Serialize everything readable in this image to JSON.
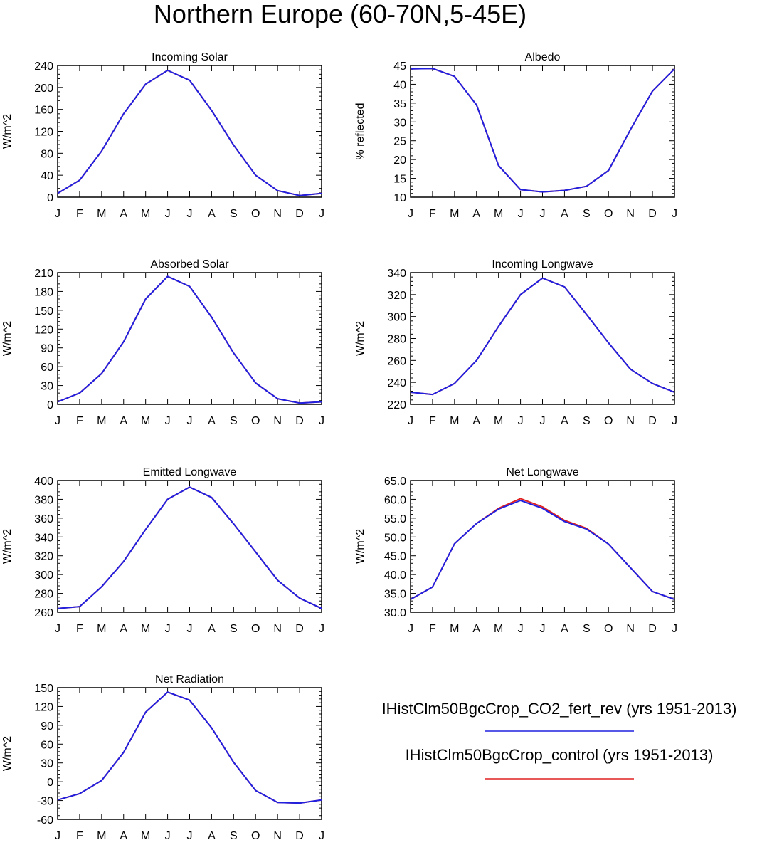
{
  "figure": {
    "title": "Northern Europe (60-70N,5-45E)"
  },
  "legend": {
    "entries": [
      {
        "label": "IHistClm50BgcCrop_CO2_fert_rev (yrs 1951-2013)",
        "color": "#2020e0"
      },
      {
        "label": "IHistClm50BgcCrop_control (yrs 1951-2013)",
        "color": "#e02020"
      }
    ]
  },
  "chart_data": [
    {
      "type": "line",
      "title": "Incoming Solar",
      "ylabel": "W/m^2",
      "xlabel": "",
      "categories": [
        "J",
        "F",
        "M",
        "A",
        "M",
        "J",
        "J",
        "A",
        "S",
        "O",
        "N",
        "D",
        "J"
      ],
      "ylim": [
        0,
        240
      ],
      "yticks": [
        0,
        40,
        80,
        120,
        160,
        200,
        240
      ],
      "ytick_labels": [
        "0",
        "40",
        "80",
        "120",
        "160",
        "200",
        "240"
      ],
      "series": [
        {
          "values": [
            7,
            31,
            84,
            152,
            206,
            231,
            213,
            158,
            95,
            40,
            12,
            3,
            7
          ],
          "color": "#e02020"
        },
        {
          "values": [
            7,
            31,
            84,
            152,
            206,
            231,
            213,
            158,
            95,
            40,
            12,
            3,
            7
          ],
          "color": "#2020e0"
        }
      ]
    },
    {
      "type": "line",
      "title": "Albedo",
      "ylabel": "% reflected",
      "xlabel": "",
      "categories": [
        "J",
        "F",
        "M",
        "A",
        "M",
        "J",
        "J",
        "A",
        "S",
        "O",
        "N",
        "D",
        "J"
      ],
      "ylim": [
        10,
        45
      ],
      "yticks": [
        10,
        15,
        20,
        25,
        30,
        35,
        40,
        45
      ],
      "ytick_labels": [
        "10",
        "15",
        "20",
        "25",
        "30",
        "35",
        "40",
        "45"
      ],
      "series": [
        {
          "values": [
            44.1,
            44.2,
            42.1,
            34.5,
            18.4,
            12.0,
            11.4,
            11.8,
            12.9,
            17.1,
            28.0,
            38.2,
            44.1
          ],
          "color": "#e02020"
        },
        {
          "values": [
            44.1,
            44.2,
            42.1,
            34.5,
            18.4,
            12.0,
            11.4,
            11.8,
            12.9,
            17.1,
            28.0,
            38.2,
            44.1
          ],
          "color": "#2020e0"
        }
      ]
    },
    {
      "type": "line",
      "title": "Absorbed Solar",
      "ylabel": "W/m^2",
      "xlabel": "",
      "categories": [
        "J",
        "F",
        "M",
        "A",
        "M",
        "J",
        "J",
        "A",
        "S",
        "O",
        "N",
        "D",
        "J"
      ],
      "ylim": [
        0,
        210
      ],
      "yticks": [
        0,
        30,
        60,
        90,
        120,
        150,
        180,
        210
      ],
      "ytick_labels": [
        "0",
        "30",
        "60",
        "90",
        "120",
        "150",
        "180",
        "210"
      ],
      "series": [
        {
          "values": [
            4,
            18,
            49,
            100,
            168,
            204,
            188,
            139,
            82,
            34,
            9,
            2,
            4
          ],
          "color": "#e02020"
        },
        {
          "values": [
            4,
            18,
            49,
            100,
            168,
            204,
            188,
            139,
            82,
            34,
            9,
            2,
            4
          ],
          "color": "#2020e0"
        }
      ]
    },
    {
      "type": "line",
      "title": "Incoming Longwave",
      "ylabel": "W/m^2",
      "xlabel": "",
      "categories": [
        "J",
        "F",
        "M",
        "A",
        "M",
        "J",
        "J",
        "A",
        "S",
        "O",
        "N",
        "D",
        "J"
      ],
      "ylim": [
        220,
        340
      ],
      "yticks": [
        220,
        240,
        260,
        280,
        300,
        320,
        340
      ],
      "ytick_labels": [
        "220",
        "240",
        "260",
        "280",
        "300",
        "320",
        "340"
      ],
      "series": [
        {
          "values": [
            231,
            229,
            239,
            260,
            291,
            320,
            335,
            327,
            302,
            276,
            252,
            239,
            231
          ],
          "color": "#e02020"
        },
        {
          "values": [
            231,
            229,
            239,
            260,
            291,
            320,
            335,
            327,
            302,
            276,
            252,
            239,
            231
          ],
          "color": "#2020e0"
        }
      ]
    },
    {
      "type": "line",
      "title": "Emitted Longwave",
      "ylabel": "W/m^2",
      "xlabel": "",
      "categories": [
        "J",
        "F",
        "M",
        "A",
        "M",
        "J",
        "J",
        "A",
        "S",
        "O",
        "N",
        "D",
        "J"
      ],
      "ylim": [
        260,
        400
      ],
      "yticks": [
        260,
        280,
        300,
        320,
        340,
        360,
        380,
        400
      ],
      "ytick_labels": [
        "260",
        "280",
        "300",
        "320",
        "340",
        "360",
        "380",
        "400"
      ],
      "series": [
        {
          "values": [
            264,
            266,
            287,
            314,
            348,
            380,
            393,
            382,
            354,
            324,
            294,
            275,
            264
          ],
          "color": "#e02020"
        },
        {
          "values": [
            264,
            266,
            287,
            314,
            348,
            380,
            393,
            382,
            354,
            324,
            294,
            275,
            264
          ],
          "color": "#2020e0"
        }
      ]
    },
    {
      "type": "line",
      "title": "Net Longwave",
      "ylabel": "W/m^2",
      "xlabel": "",
      "categories": [
        "J",
        "F",
        "M",
        "A",
        "M",
        "J",
        "J",
        "A",
        "S",
        "O",
        "N",
        "D",
        "J"
      ],
      "ylim": [
        30,
        65
      ],
      "yticks": [
        30,
        35,
        40,
        45,
        50,
        55,
        60,
        65
      ],
      "ytick_labels": [
        "30.0",
        "35.0",
        "40.0",
        "45.0",
        "50.0",
        "55.0",
        "60.0",
        "65.0"
      ],
      "series": [
        {
          "values": [
            33.4,
            36.7,
            48.2,
            53.6,
            57.6,
            60.2,
            58.0,
            54.4,
            52.3,
            48.1,
            41.8,
            35.5,
            33.4
          ],
          "color": "#e02020"
        },
        {
          "values": [
            33.4,
            36.7,
            48.2,
            53.6,
            57.4,
            59.7,
            57.6,
            54.1,
            52.1,
            48.1,
            41.8,
            35.5,
            33.4
          ],
          "color": "#2020e0"
        }
      ]
    },
    {
      "type": "line",
      "title": "Net Radiation",
      "ylabel": "W/m^2",
      "xlabel": "",
      "categories": [
        "J",
        "F",
        "M",
        "A",
        "M",
        "J",
        "J",
        "A",
        "S",
        "O",
        "N",
        "D",
        "J"
      ],
      "ylim": [
        -60,
        150
      ],
      "yticks": [
        -60,
        -30,
        0,
        30,
        60,
        90,
        120,
        150
      ],
      "ytick_labels": [
        "-60",
        "-30",
        "0",
        "30",
        "60",
        "90",
        "120",
        "150"
      ],
      "series": [
        {
          "values": [
            -29,
            -19,
            2,
            47,
            111,
            143,
            130,
            86,
            31,
            -14,
            -33,
            -34,
            -29
          ],
          "color": "#e02020"
        },
        {
          "values": [
            -29,
            -19,
            2,
            47,
            111,
            143,
            130,
            86,
            31,
            -14,
            -33,
            -34,
            -29
          ],
          "color": "#2020e0"
        }
      ]
    }
  ]
}
